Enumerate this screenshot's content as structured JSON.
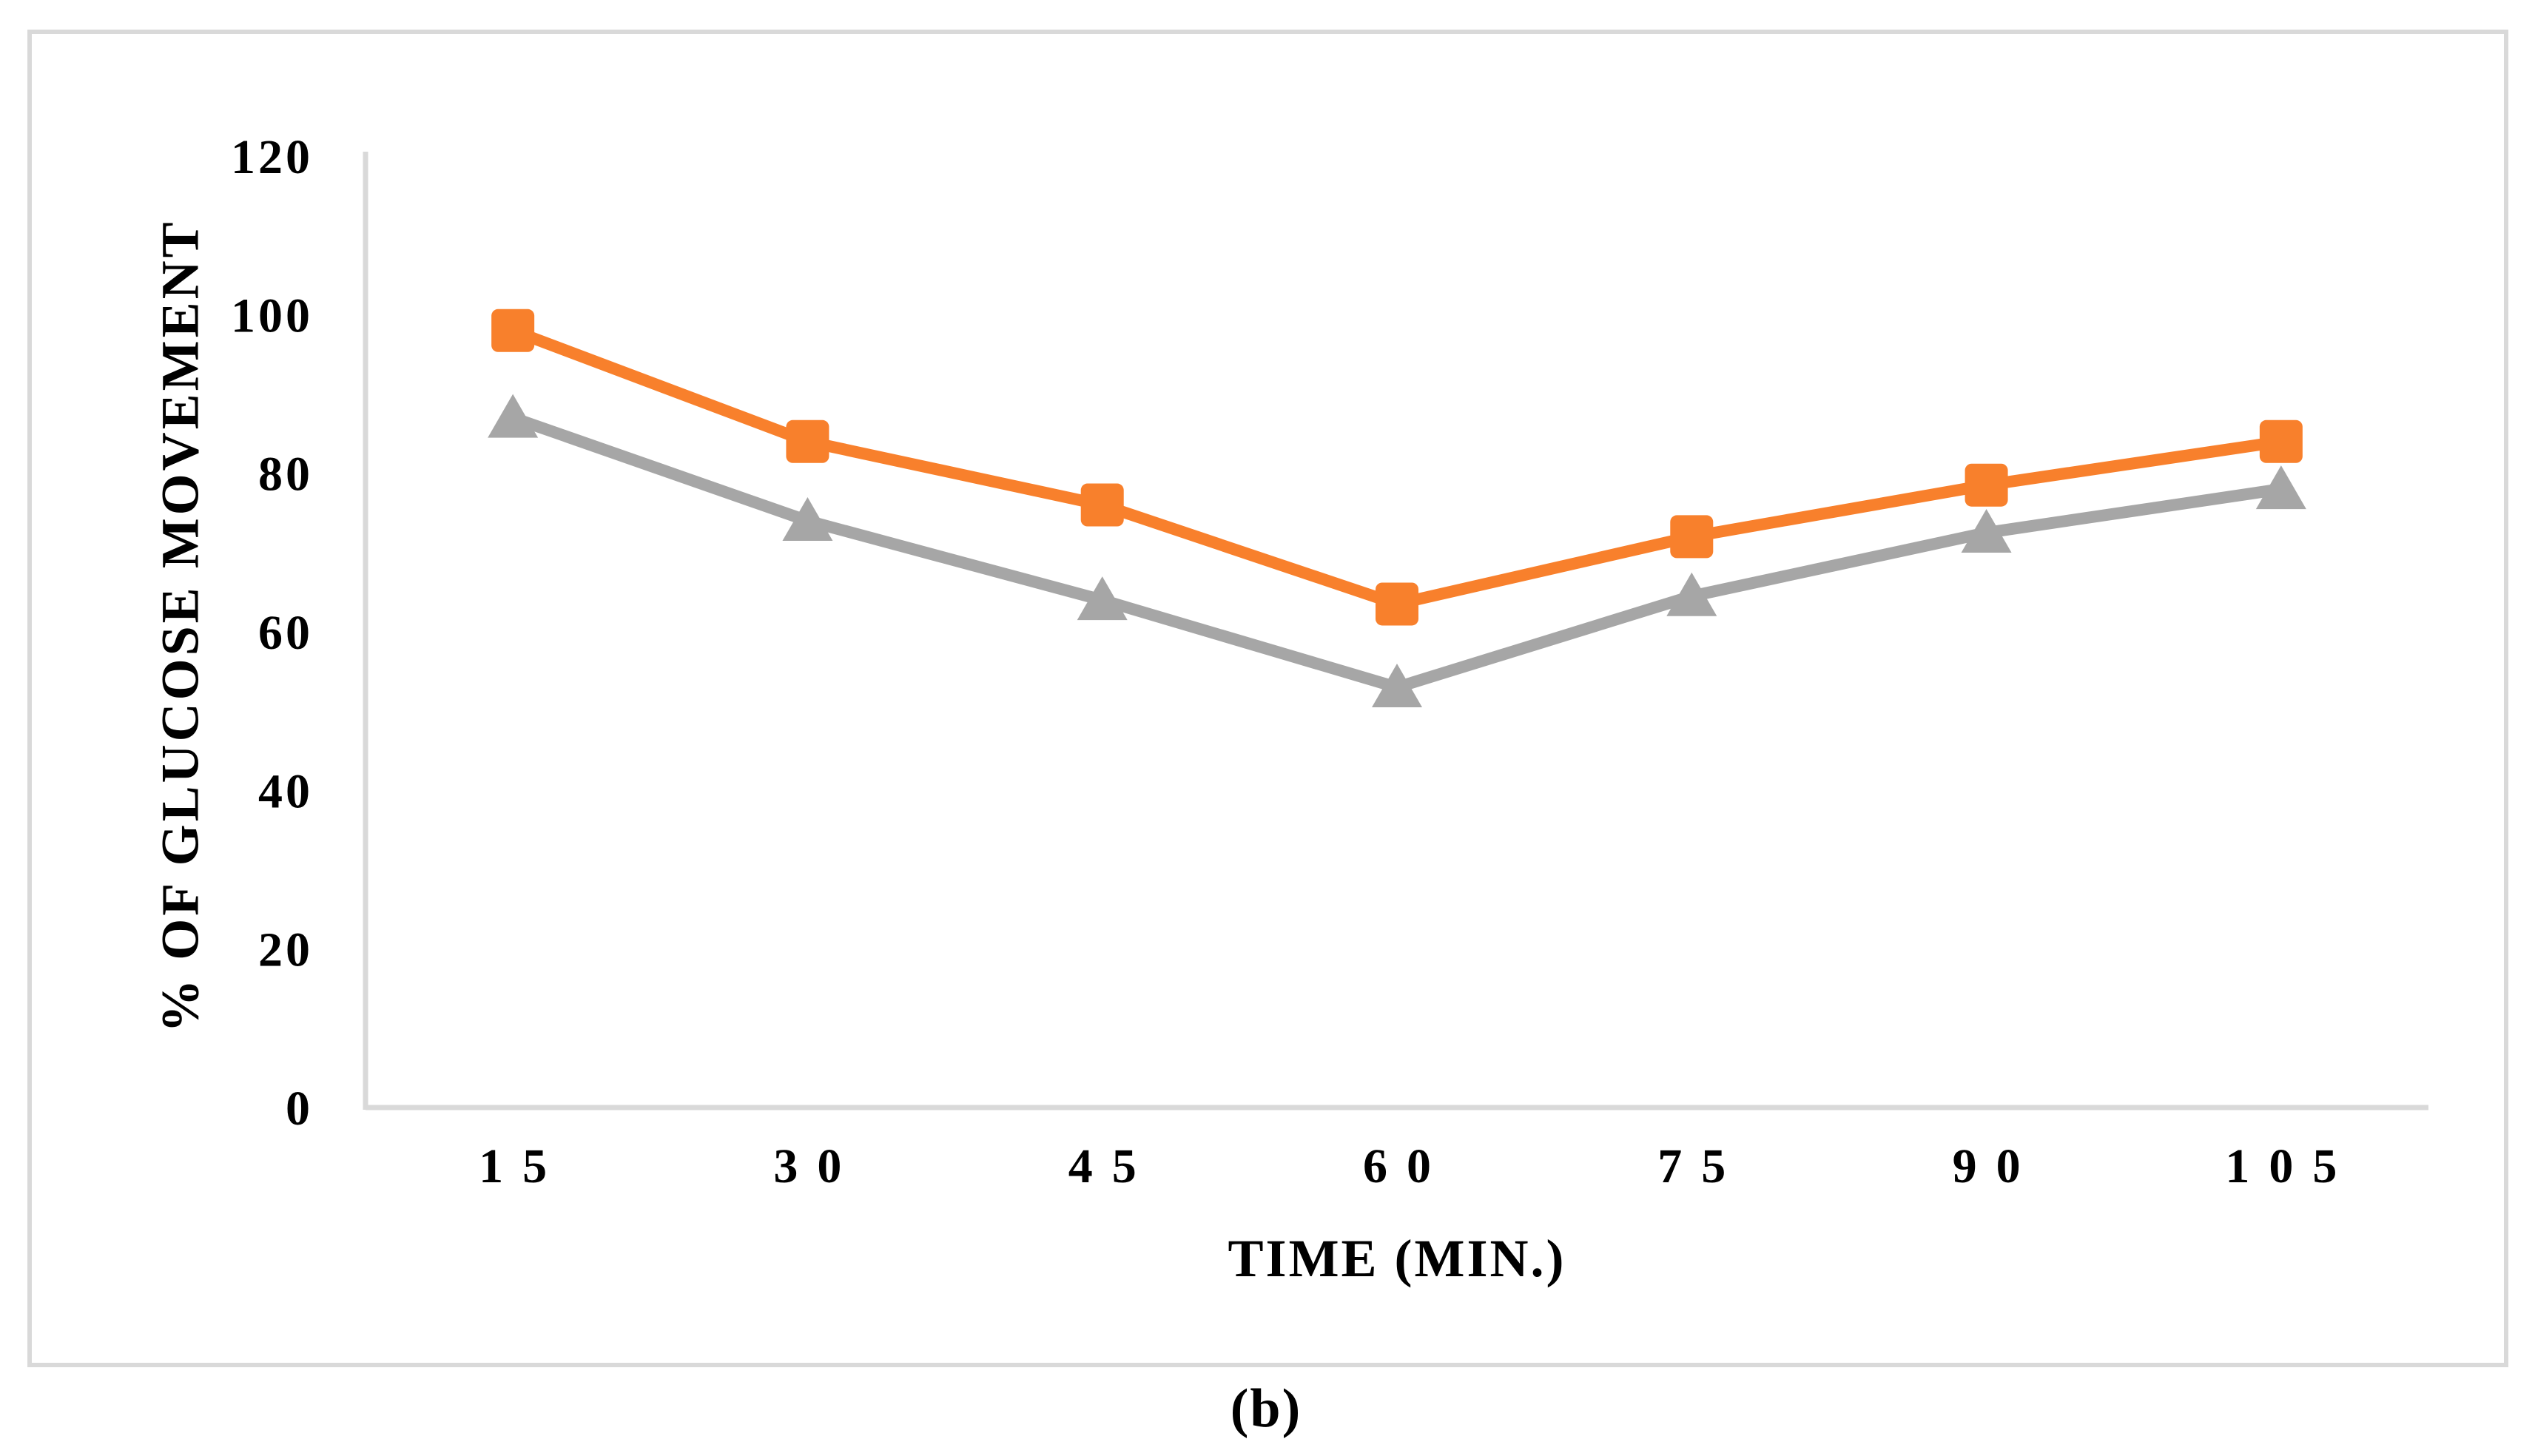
{
  "figure": {
    "caption": "(b)"
  },
  "chart_data": {
    "type": "line",
    "title": "",
    "xlabel": "TIME (MIN.)",
    "ylabel": "% OF GLUCOSE MOVEMENT",
    "categories": [
      15,
      30,
      45,
      60,
      75,
      90,
      105
    ],
    "x_tick_labels": [
      "15",
      "30",
      "45",
      "60",
      "75",
      "90",
      "105"
    ],
    "y_ticks": [
      0,
      20,
      40,
      60,
      80,
      100,
      120
    ],
    "y_tick_labels": [
      "0",
      "20",
      "40",
      "60",
      "80",
      "100",
      "120"
    ],
    "ylim": [
      0,
      120
    ],
    "grid": false,
    "legend_position": "none",
    "axis_color": "#D9D9D9",
    "frame_color": "#D9D9D9",
    "series": [
      {
        "name": "gray-triangles",
        "marker": "triangle",
        "color": "#A6A6A6",
        "values": [
          87,
          74,
          64,
          53,
          64.5,
          72.5,
          78
        ]
      },
      {
        "name": "orange-squares",
        "marker": "square",
        "color": "#F8802C",
        "values": [
          98,
          84,
          76,
          63.5,
          72,
          78.5,
          84
        ]
      }
    ]
  }
}
